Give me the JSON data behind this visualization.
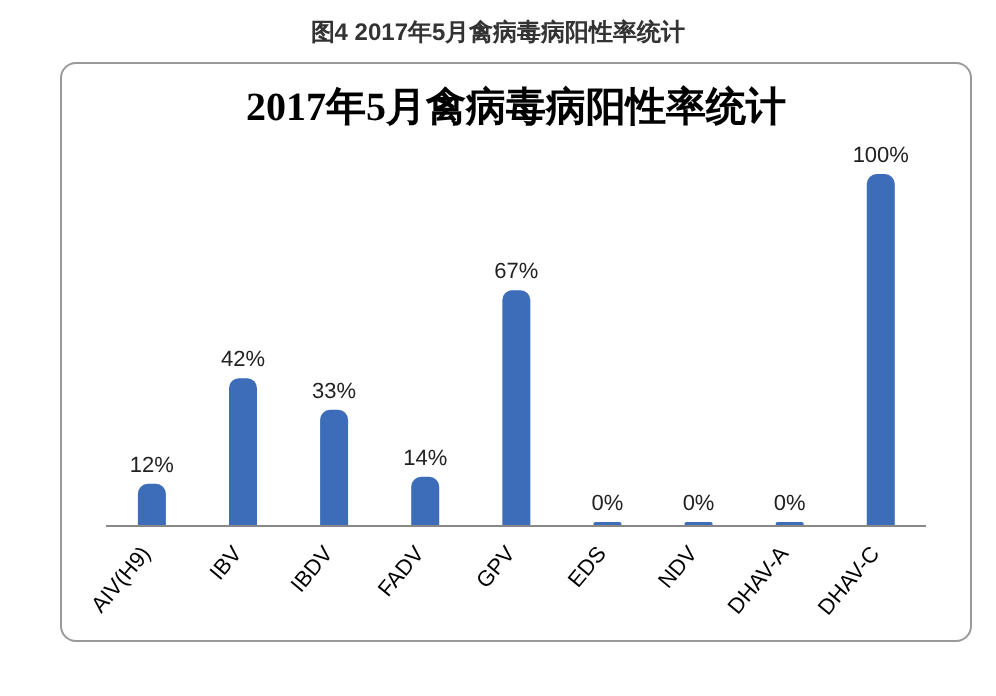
{
  "chart_data": {
    "type": "bar",
    "title": "图4 2017年5月禽病毒病阳性率统计",
    "subtitle": "2017年5月禽病毒病阳性率统计",
    "categories": [
      "AIV(H9)",
      "IBV",
      "IBDV",
      "FADV",
      "GPV",
      "EDS",
      "NDV",
      "DHAV-A",
      "DHAV-C"
    ],
    "values": [
      12,
      42,
      33,
      14,
      67,
      0,
      0,
      0,
      100
    ],
    "value_labels": [
      "12%",
      "42%",
      "33%",
      "14%",
      "67%",
      "0%",
      "0%",
      "0%",
      "100%"
    ],
    "color": "#3d6cb9",
    "grid": false,
    "legend": false
  }
}
